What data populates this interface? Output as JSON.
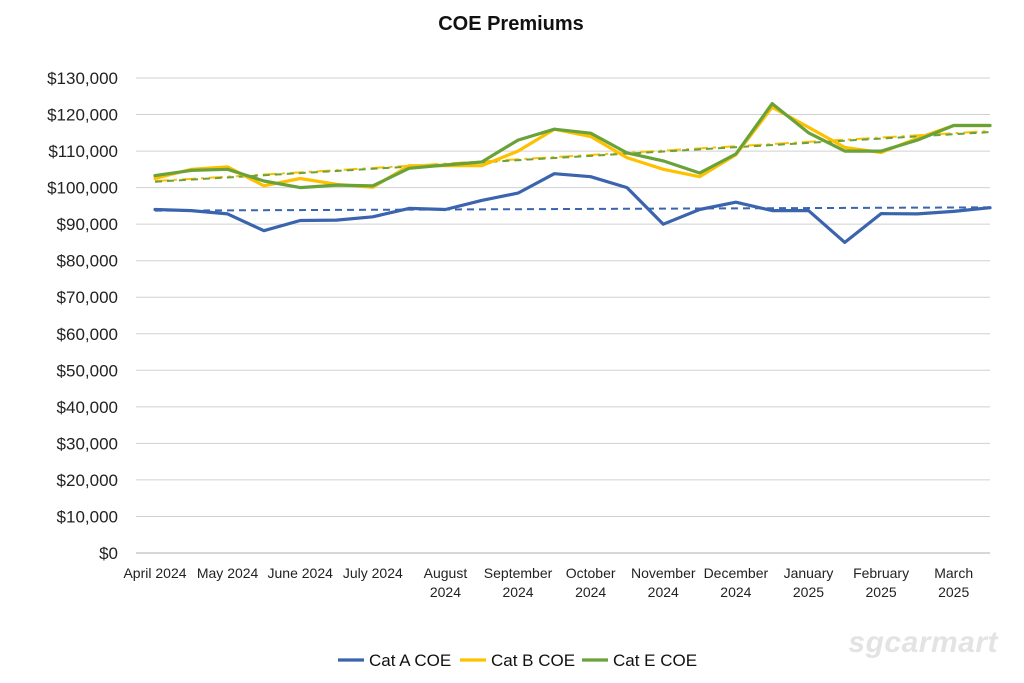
{
  "chart_data": {
    "type": "line",
    "title": "COE Premiums",
    "xlabel": "",
    "ylabel": "",
    "ylim": [
      0,
      130000
    ],
    "ytick_values": [
      0,
      10000,
      20000,
      30000,
      40000,
      50000,
      60000,
      70000,
      80000,
      90000,
      100000,
      110000,
      120000,
      130000
    ],
    "ytick_labels": [
      "$0",
      "$10,000",
      "$20,000",
      "$30,000",
      "$40,000",
      "$50,000",
      "$60,000",
      "$70,000",
      "$80,000",
      "$90,000",
      "$100,000",
      "$110,000",
      "$120,000",
      "$130,000"
    ],
    "grid": true,
    "legend_position": "bottom-center",
    "categories": [
      "April 2024 #1",
      "April 2024 #2",
      "May 2024 #1",
      "May 2024 #2",
      "June 2024 #1",
      "June 2024 #2",
      "July 2024 #1",
      "July 2024 #2",
      "August 2024 #1",
      "August 2024 #2",
      "September 2024 #1",
      "September 2024 #2",
      "October 2024 #1",
      "October 2024 #2",
      "November 2024 #1",
      "November 2024 #2",
      "December 2024 #1",
      "December 2024 #2",
      "January 2025 #1",
      "January 2025 #2",
      "February 2025 #1",
      "February 2025 #2",
      "March 2025 #1",
      "March 2025 #2"
    ],
    "x_labels": [
      [
        "April 2024"
      ],
      [
        "May 2024"
      ],
      [
        "June 2024"
      ],
      [
        "July 2024"
      ],
      [
        "August",
        "2024"
      ],
      [
        "September",
        "2024"
      ],
      [
        "October",
        "2024"
      ],
      [
        "November",
        "2024"
      ],
      [
        "December",
        "2024"
      ],
      [
        "January",
        "2025"
      ],
      [
        "February",
        "2025"
      ],
      [
        "March",
        "2025"
      ]
    ],
    "series": [
      {
        "name": "Cat A COE",
        "color": "#3a64ad",
        "values": [
          94000,
          93700,
          92800,
          88200,
          91000,
          91100,
          92000,
          94300,
          94000,
          96500,
          98500,
          103800,
          103000,
          100000,
          90000,
          94000,
          96000,
          93700,
          93700,
          85000,
          92900,
          92800,
          93500,
          94500
        ]
      },
      {
        "name": "Cat B COE",
        "color": "#ffc000",
        "values": [
          102500,
          105000,
          105700,
          100500,
          102500,
          100900,
          100100,
          106000,
          106000,
          106000,
          110000,
          116000,
          114000,
          108200,
          105000,
          103000,
          109000,
          122000,
          116500,
          111000,
          109600,
          113500,
          117000,
          117000
        ]
      },
      {
        "name": "Cat E COE",
        "color": "#6aa23a",
        "values": [
          103300,
          104700,
          105000,
          101800,
          100000,
          100700,
          100500,
          105300,
          106200,
          107000,
          113000,
          116000,
          114900,
          109500,
          107300,
          104000,
          109200,
          123000,
          115000,
          110000,
          110000,
          113000,
          117000,
          117000
        ]
      }
    ],
    "trendlines": [
      {
        "name": "Cat A COE trend",
        "color": "#3a64ad",
        "dash": "dashed",
        "start": 93700,
        "end": 94600
      },
      {
        "name": "Cat B COE trend",
        "color": "#ffc000",
        "dash": "dash-dot",
        "start": 101800,
        "end": 115500
      },
      {
        "name": "Cat E COE trend",
        "color": "#6aa23a",
        "dash": "dashed",
        "start": 101600,
        "end": 115200
      }
    ]
  },
  "watermark": "sgcarmart"
}
